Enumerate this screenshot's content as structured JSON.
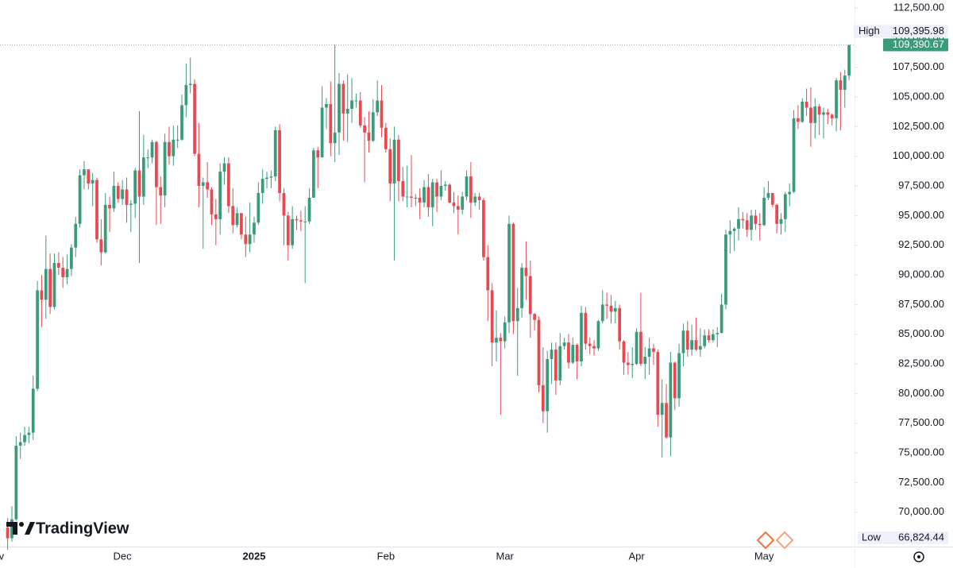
{
  "chart_data": {
    "type": "candlestick",
    "up_color": "#3a9b7a",
    "down_color": "#e8484f",
    "watermark": "TradingView",
    "xlim": [
      1.2,
      202.1
    ],
    "xticks": [
      {
        "value": 0,
        "label": "Nov"
      },
      {
        "value": 30,
        "label": "Dec"
      },
      {
        "value": 61,
        "label": "2025"
      },
      {
        "value": 92,
        "label": "Feb"
      },
      {
        "value": 120,
        "label": "Mar"
      },
      {
        "value": 151,
        "label": "Apr"
      },
      {
        "value": 181,
        "label": "May"
      }
    ],
    "ylim": [
      67100,
      113170
    ],
    "yticks": [
      {
        "value": 70000,
        "label": "70,000.00"
      },
      {
        "value": 72500,
        "label": "72,500.00"
      },
      {
        "value": 75000,
        "label": "75,000.00"
      },
      {
        "value": 77500,
        "label": "77,500.00"
      },
      {
        "value": 80000,
        "label": "80,000.00"
      },
      {
        "value": 82500,
        "label": "82,500.00"
      },
      {
        "value": 85000,
        "label": "85,000.00"
      },
      {
        "value": 87500,
        "label": "87,500.00"
      },
      {
        "value": 90000,
        "label": "90,000.00"
      },
      {
        "value": 92500,
        "label": "92,500.00"
      },
      {
        "value": 95000,
        "label": "95,000.00"
      },
      {
        "value": 97500,
        "label": "97,500.00"
      },
      {
        "value": 100000,
        "label": "100,000.00"
      },
      {
        "value": 102500,
        "label": "102,500.00"
      },
      {
        "value": 105000,
        "label": "105,000.00"
      },
      {
        "value": 107500,
        "label": "107,500.00"
      },
      {
        "value": 110000,
        "label": "110,000.00"
      },
      {
        "value": 112500,
        "label": "112,500.00"
      }
    ],
    "high_marker": {
      "text": "High",
      "value": 109395.98,
      "label": "109,395.98"
    },
    "low_marker": {
      "text": "Low",
      "value": 66824.44,
      "label": "66,824.44"
    },
    "last_price": {
      "value": 109390.67,
      "label": "109,390.67"
    },
    "x": [
      3,
      4,
      5,
      6,
      7,
      8,
      9,
      10,
      11,
      12,
      13,
      14,
      15,
      16,
      17,
      18,
      19,
      20,
      21,
      22,
      23,
      24,
      25,
      26,
      27,
      28,
      29,
      30,
      31,
      32,
      33,
      34,
      35,
      36,
      37,
      38,
      39,
      40,
      41,
      42,
      43,
      44,
      45,
      46,
      47,
      48,
      49,
      50,
      51,
      52,
      53,
      54,
      55,
      56,
      57,
      58,
      59,
      60,
      61,
      62,
      63,
      64,
      65,
      66,
      67,
      68,
      69,
      70,
      71,
      72,
      73,
      74,
      75,
      76,
      77,
      78,
      79,
      80,
      81,
      82,
      83,
      84,
      85,
      86,
      87,
      88,
      89,
      90,
      91,
      92,
      93,
      94,
      95,
      96,
      97,
      98,
      99,
      100,
      101,
      102,
      103,
      104,
      105,
      106,
      107,
      108,
      109,
      110,
      111,
      112,
      113,
      114,
      115,
      116,
      117,
      118,
      119,
      120,
      121,
      122,
      123,
      124,
      125,
      126,
      127,
      128,
      129,
      130,
      131,
      132,
      133,
      134,
      135,
      136,
      137,
      138,
      139,
      140,
      141,
      142,
      143,
      144,
      145,
      146,
      147,
      148,
      149,
      150,
      151,
      152,
      153,
      154,
      155,
      156,
      157,
      158,
      159,
      160,
      161,
      162,
      163,
      164,
      165,
      166,
      167,
      168,
      169,
      170,
      171,
      172,
      173,
      174,
      175,
      176,
      177,
      178,
      179,
      180,
      181,
      182,
      183,
      184,
      185,
      186,
      187,
      188,
      189,
      190,
      191,
      192,
      193,
      194,
      195,
      196,
      197,
      198,
      199,
      200,
      201
    ],
    "open": [
      68700,
      67800,
      69400,
      75600,
      75900,
      76500,
      76700,
      80400,
      88700,
      87900,
      90500,
      87300,
      91000,
      90600,
      89800,
      90500,
      92300,
      94300,
      98400,
      98900,
      97700,
      98000,
      93000,
      91900,
      95900,
      95600,
      97500,
      96400,
      97200,
      95900,
      96000,
      98800,
      96600,
      99900,
      99900,
      101200,
      97400,
      96700,
      101200,
      100000,
      101400,
      101400,
      104300,
      106000,
      106100,
      100200,
      97500,
      97800,
      97200,
      95100,
      94700,
      98700,
      99400,
      95800,
      94200,
      95200,
      93400,
      92600,
      93400,
      94400,
      96900,
      98100,
      98200,
      98300,
      102200,
      96900,
      95000,
      92500,
      94700,
      94600,
      94500,
      94500,
      96500,
      100500,
      99900,
      104100,
      104400,
      101100,
      102000,
      106100,
      103600,
      104000,
      104700,
      104700,
      102600,
      102000,
      101300,
      103700,
      104700,
      102400,
      100600,
      97700,
      101400,
      97900,
      96600,
      96600,
      96500,
      96500,
      96100,
      97400,
      95700,
      97800,
      96600,
      97500,
      97600,
      96100,
      95800,
      95500,
      96600,
      98300,
      96100,
      96600,
      96300,
      91500,
      88700,
      84300,
      84700,
      84400,
      86000,
      94300,
      86100,
      87200,
      90600,
      89900,
      86700,
      86200,
      80700,
      78500,
      82900,
      83700,
      81100,
      84000,
      84300,
      82600,
      84100,
      82700,
      86800,
      84200,
      84000,
      83800,
      86100,
      87500,
      87400,
      86900,
      87200,
      84400,
      82600,
      82400,
      82500,
      85200,
      82500,
      83100,
      83800,
      83500,
      78200,
      79200,
      76300,
      82600,
      79600,
      83400,
      85300,
      83700,
      84500,
      83700,
      84000,
      84900,
      84500,
      85000,
      85100,
      87500,
      93400,
      93700,
      93900,
      94700,
      94600,
      93800,
      95000,
      94300,
      94200,
      96500,
      96900,
      95900,
      94300,
      94700,
      96800,
      97000,
      103200,
      102900,
      104600,
      104100,
      102800,
      104200,
      103500,
      103700,
      103500,
      103200,
      106400,
      105600,
      106800
    ],
    "high": [
      69500,
      70500,
      76400,
      76700,
      77200,
      77200,
      81500,
      89500,
      90000,
      93300,
      91800,
      91800,
      91900,
      91500,
      91700,
      92600,
      94900,
      98900,
      99600,
      98700,
      98600,
      98200,
      94700,
      96900,
      96600,
      98700,
      97800,
      98000,
      98200,
      96300,
      99000,
      103800,
      101800,
      100600,
      101400,
      101300,
      98300,
      101900,
      102500,
      102600,
      102600,
      105200,
      107800,
      108300,
      106500,
      102800,
      98200,
      99500,
      97400,
      96400,
      99400,
      99900,
      99900,
      97300,
      95700,
      95200,
      94900,
      96100,
      94900,
      97800,
      98900,
      98700,
      98800,
      102500,
      102700,
      97300,
      95300,
      95800,
      95000,
      95400,
      95800,
      97300,
      100700,
      100800,
      105900,
      104900,
      106300,
      109395.98,
      107000,
      106400,
      106900,
      106600,
      105300,
      105400,
      103300,
      103800,
      104800,
      106400,
      106000,
      102800,
      101500,
      102500,
      101800,
      99100,
      99200,
      100100,
      96800,
      97300,
      98000,
      98500,
      98100,
      98100,
      98800,
      97900,
      97700,
      97000,
      96700,
      97000,
      98800,
      99500,
      96900,
      96900,
      96500,
      92500,
      89300,
      87000,
      85100,
      86500,
      95000,
      94400,
      88900,
      91000,
      92800,
      91200,
      86800,
      86500,
      83900,
      83600,
      84300,
      84300,
      85100,
      84700,
      85000,
      84700,
      84200,
      87400,
      87300,
      84700,
      84500,
      86200,
      88700,
      88500,
      88300,
      87800,
      87500,
      84500,
      83500,
      83900,
      85500,
      88500,
      83900,
      84700,
      84200,
      83700,
      81200,
      80800,
      83500,
      82700,
      84200,
      85900,
      86100,
      85800,
      86400,
      85500,
      85400,
      85400,
      85400,
      85600,
      88400,
      93800,
      94600,
      94000,
      95700,
      95300,
      95200,
      95500,
      95500,
      95200,
      97400,
      97900,
      96900,
      96000,
      95200,
      97000,
      97700,
      103900,
      104300,
      104900,
      105700,
      105800,
      104900,
      104400,
      104100,
      104000,
      103600,
      106600,
      107100,
      107300,
      109390.67
    ],
    "low": [
      66824.44,
      67500,
      69300,
      74500,
      75600,
      75800,
      76100,
      80200,
      85600,
      86300,
      86700,
      87100,
      90000,
      88900,
      89200,
      89900,
      91500,
      94000,
      97200,
      97200,
      95800,
      92700,
      90800,
      91800,
      93600,
      95300,
      96100,
      95900,
      94400,
      93600,
      94800,
      91000,
      95900,
      99000,
      99400,
      94200,
      94300,
      95700,
      99300,
      99200,
      100700,
      101300,
      103300,
      105300,
      100000,
      95700,
      92200,
      96500,
      94200,
      92500,
      93400,
      97600,
      95200,
      93500,
      94000,
      93000,
      91500,
      91900,
      92700,
      94200,
      96000,
      97300,
      97300,
      97900,
      96200,
      92500,
      91200,
      92200,
      93800,
      93700,
      89300,
      94300,
      96500,
      97300,
      99900,
      102300,
      100000,
      99500,
      100100,
      101300,
      101200,
      102800,
      104100,
      102400,
      97800,
      100300,
      101200,
      103400,
      101600,
      100300,
      96200,
      91200,
      96200,
      96200,
      95700,
      95700,
      95800,
      94700,
      95700,
      94900,
      94100,
      95300,
      96300,
      97100,
      96000,
      95200,
      93400,
      95100,
      96300,
      94800,
      95800,
      95500,
      91200,
      86100,
      82300,
      82700,
      78200,
      83800,
      85100,
      85000,
      81500,
      86400,
      87900,
      84700,
      85300,
      80100,
      77500,
      76700,
      80800,
      79900,
      80700,
      83700,
      82100,
      82500,
      81200,
      82300,
      83700,
      83300,
      83200,
      83600,
      85900,
      86300,
      85900,
      85900,
      83700,
      81600,
      81600,
      81300,
      82400,
      82300,
      81200,
      81600,
      82400,
      77200,
      74600,
      76200,
      74700,
      78600,
      78900,
      82300,
      83100,
      83200,
      83600,
      83100,
      83800,
      84300,
      84300,
      83900,
      85100,
      87100,
      91800,
      92000,
      92900,
      93900,
      93200,
      92900,
      93800,
      92900,
      94100,
      96300,
      95700,
      93500,
      93400,
      93600,
      95800,
      96900,
      102300,
      102800,
      103400,
      100800,
      101500,
      101800,
      101500,
      102700,
      102600,
      102100,
      102200,
      104100,
      106400
    ],
    "close": [
      67800,
      69400,
      75600,
      75900,
      76500,
      76700,
      80400,
      88700,
      87900,
      90500,
      87300,
      91000,
      90600,
      89800,
      90500,
      92300,
      94300,
      98400,
      98900,
      97700,
      98000,
      93000,
      91900,
      95900,
      95600,
      97500,
      96400,
      97200,
      95900,
      96000,
      98800,
      96600,
      99900,
      99900,
      101200,
      97400,
      96700,
      101200,
      100000,
      101400,
      101400,
      104300,
      106000,
      106100,
      100200,
      97500,
      97800,
      97200,
      95100,
      94700,
      98700,
      99400,
      95800,
      94200,
      95200,
      93400,
      92600,
      93400,
      94400,
      96900,
      98100,
      98200,
      98300,
      102200,
      96900,
      95000,
      92500,
      94700,
      94600,
      94500,
      94500,
      96500,
      100500,
      99900,
      104100,
      104400,
      101100,
      102000,
      106100,
      103600,
      104000,
      104700,
      104700,
      102600,
      102000,
      101300,
      103700,
      104700,
      102400,
      100600,
      97700,
      101400,
      97900,
      96600,
      96600,
      96500,
      96500,
      96100,
      97400,
      95700,
      97800,
      96600,
      97500,
      97600,
      96100,
      95800,
      95500,
      96600,
      98300,
      96100,
      96600,
      96300,
      91500,
      88700,
      84300,
      84700,
      84400,
      86000,
      94300,
      86100,
      87200,
      90600,
      89900,
      86700,
      86200,
      80700,
      78500,
      82900,
      83700,
      81100,
      84000,
      84300,
      82600,
      84100,
      82700,
      86800,
      84200,
      84000,
      83800,
      86100,
      87500,
      87400,
      86900,
      87200,
      84400,
      82600,
      82400,
      82500,
      85200,
      82500,
      83100,
      83800,
      83500,
      78200,
      79200,
      76300,
      82600,
      79600,
      83400,
      85300,
      83700,
      84500,
      83700,
      84000,
      84900,
      84500,
      85000,
      85100,
      87500,
      93400,
      93700,
      93900,
      94700,
      94600,
      93800,
      95000,
      94300,
      94200,
      96500,
      96900,
      95900,
      94300,
      94700,
      96800,
      97000,
      103200,
      102900,
      104600,
      104100,
      102800,
      104200,
      103500,
      103700,
      103500,
      103200,
      106400,
      105600,
      106800,
      109390.67
    ]
  }
}
